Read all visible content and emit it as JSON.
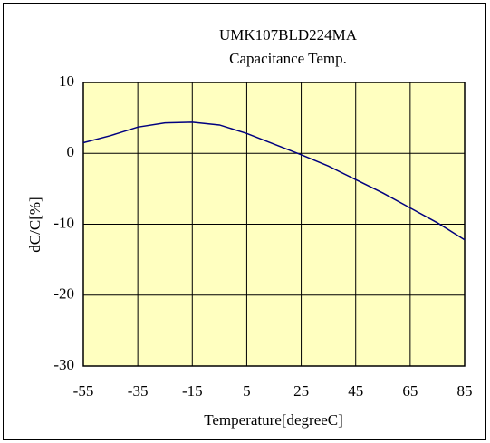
{
  "chart_data": {
    "type": "line",
    "title": [
      "UMK107BLD224MA",
      "Capacitance Temp."
    ],
    "xlabel": "Temperature[degreeC]",
    "ylabel": "dC/C[%]",
    "x": [
      -55,
      -45,
      -35,
      -25,
      -15,
      -5,
      5,
      15,
      25,
      35,
      45,
      55,
      65,
      75,
      85
    ],
    "series": [
      {
        "color": "#000080",
        "values": [
          1.5,
          2.5,
          3.7,
          4.3,
          4.4,
          4.0,
          2.8,
          1.3,
          -0.2,
          -1.8,
          -3.7,
          -5.6,
          -7.7,
          -9.8,
          -12.2
        ]
      }
    ],
    "xlim": [
      -55,
      85
    ],
    "xticks": [
      -55,
      -35,
      -15,
      5,
      25,
      45,
      65,
      85
    ],
    "ylim": [
      -30,
      10
    ],
    "yticks": [
      -30,
      -20,
      -10,
      0,
      10
    ],
    "grid": true,
    "background": "#ffffc0"
  }
}
